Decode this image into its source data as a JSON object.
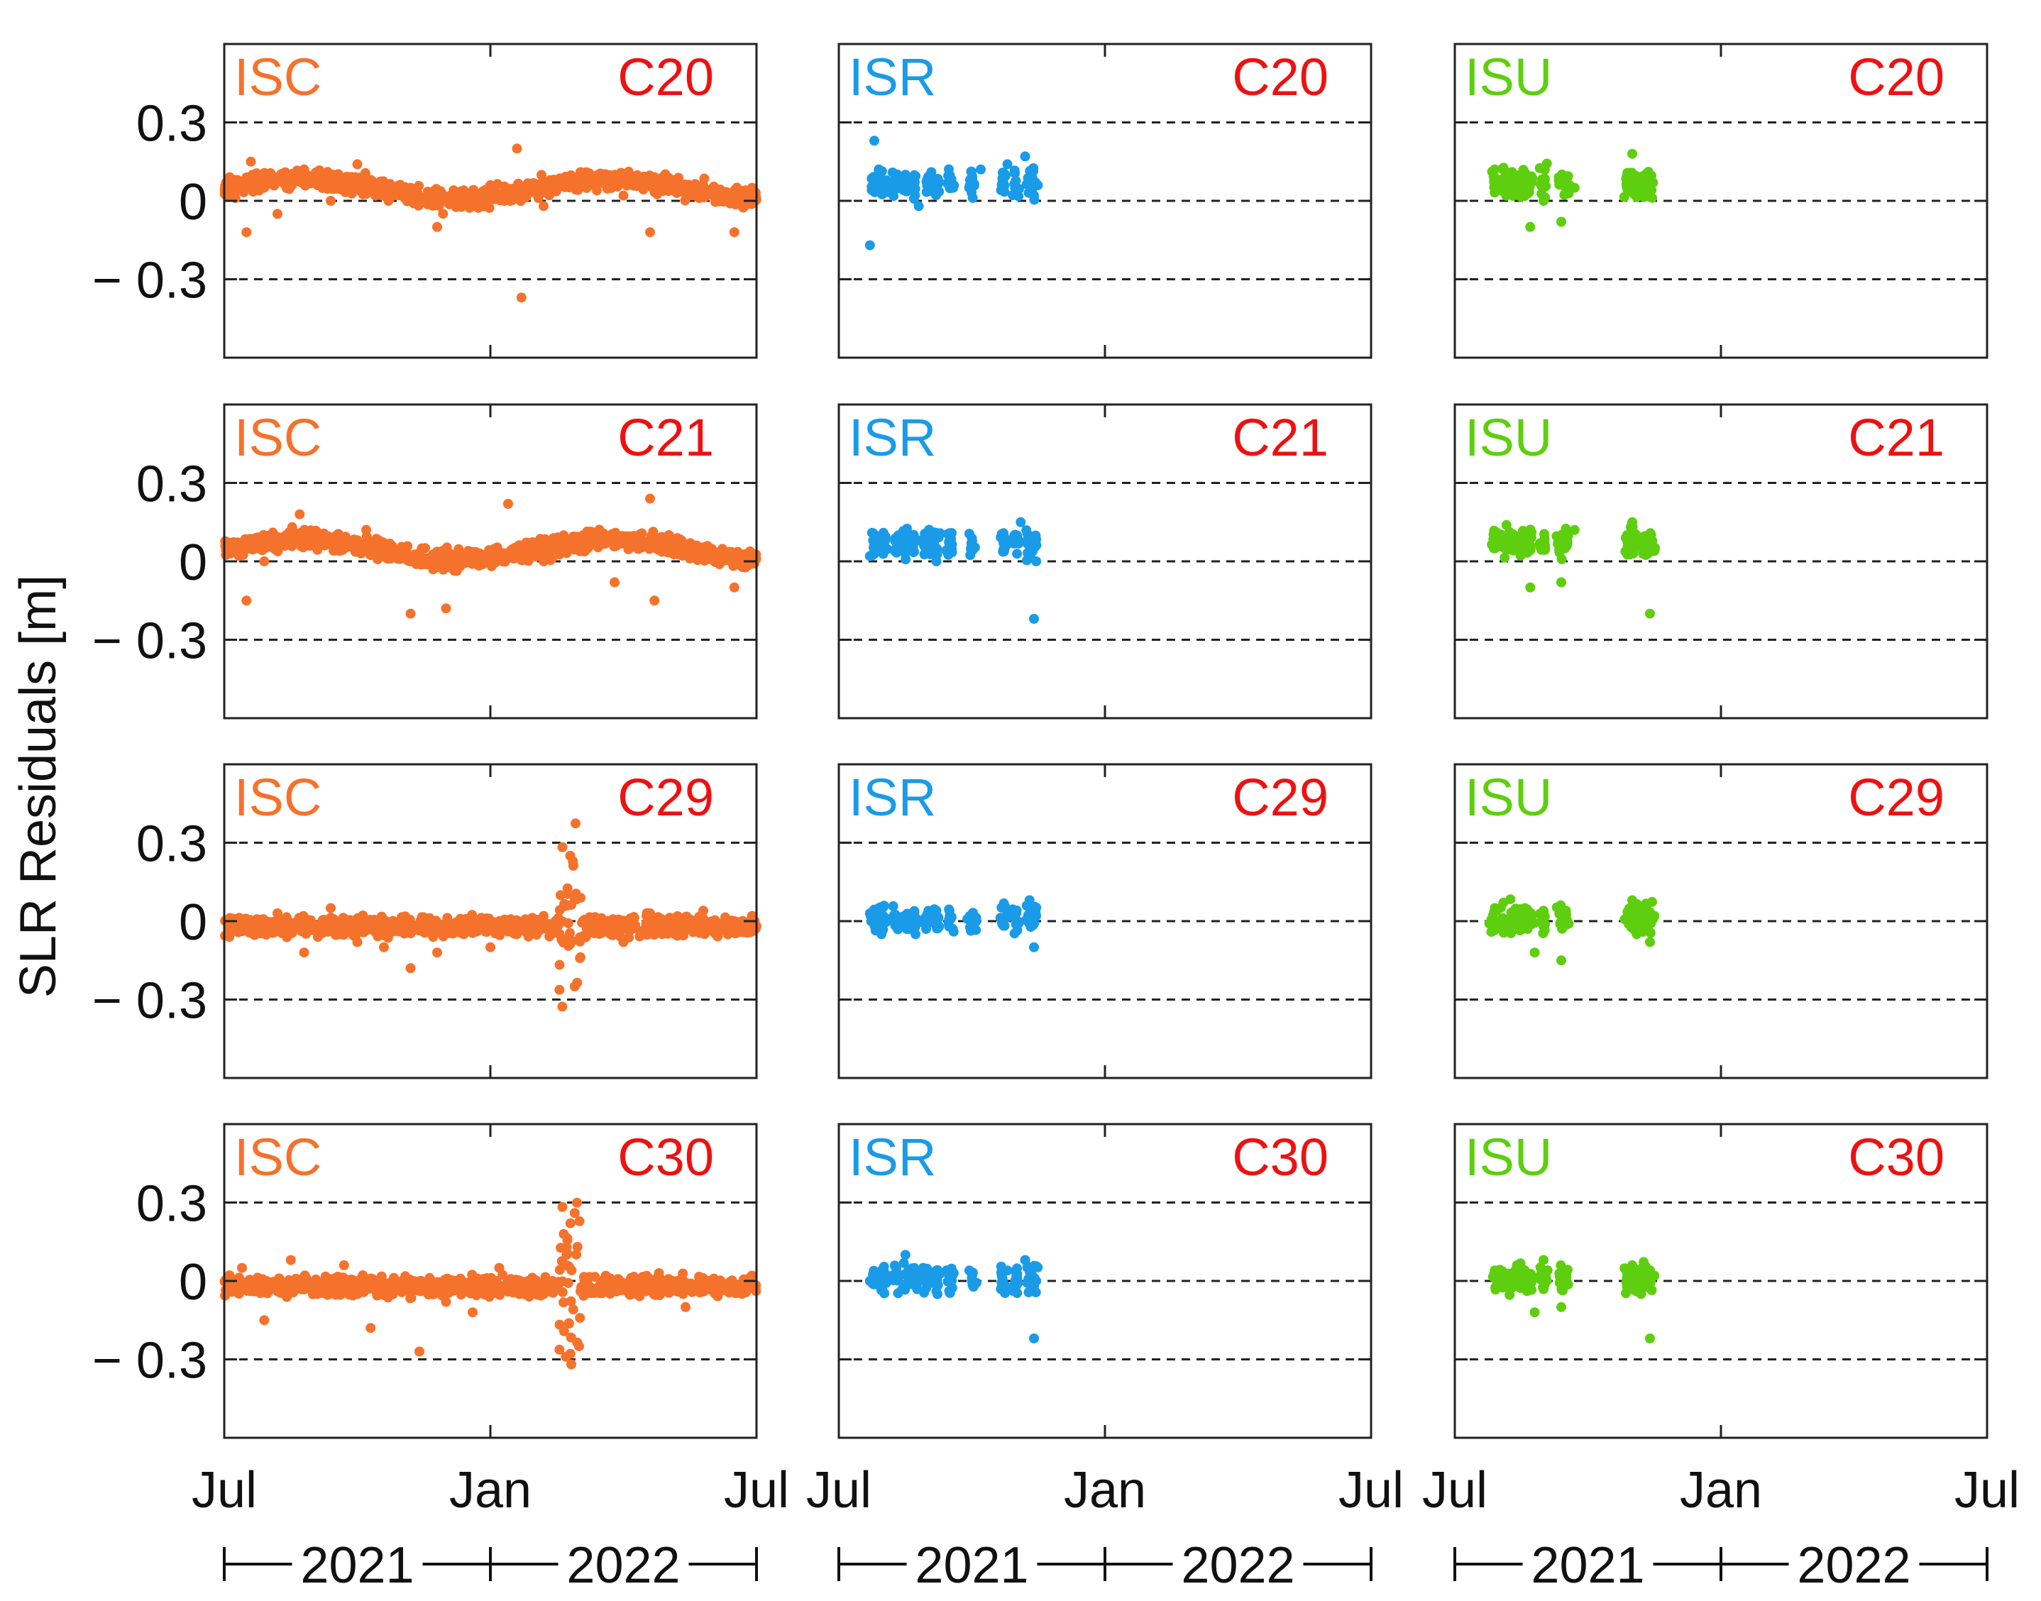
{
  "figure": {
    "ylabel": "SLR Residuals [m]",
    "x_tick_labels": [
      "Jul",
      "Jan",
      "Jul"
    ],
    "year_labels": [
      "2021",
      "2022"
    ],
    "y_tick_labels": [
      "0.3",
      "0",
      "− 0.3"
    ]
  },
  "chart_data": {
    "type": "scatter",
    "xlabel": "",
    "ylabel": "SLR Residuals [m]",
    "x_unit": "months since Jul 2021",
    "xlim": [
      0,
      12
    ],
    "ylim": [
      -0.6,
      0.6
    ],
    "yticks": [
      0.3,
      0,
      -0.3
    ],
    "reference_lines": [
      0.3,
      0,
      -0.3
    ],
    "grid": false,
    "columns": [
      {
        "name": "ISC",
        "color": "#f5722c",
        "coverage_months": [
          0,
          12
        ]
      },
      {
        "name": "ISR",
        "color": "#1a9be8",
        "coverage_months": [
          0,
          4.6
        ]
      },
      {
        "name": "ISU",
        "color": "#5ecf0f",
        "coverage_months": [
          0,
          4.6
        ]
      }
    ],
    "rows": [
      "C20",
      "C21",
      "C29",
      "C30"
    ],
    "panel_label_color": "#ee1111",
    "panels": [
      {
        "row": "C20",
        "column": "ISC",
        "points": [
          [
            0.05,
            0.02
          ],
          [
            0.25,
            0.08
          ],
          [
            0.5,
            -0.12
          ],
          [
            0.6,
            0.15
          ],
          [
            0.9,
            0.05
          ],
          [
            1.2,
            -0.05
          ],
          [
            1.5,
            0.1
          ],
          [
            1.8,
            0.12
          ],
          [
            2.1,
            0.06
          ],
          [
            2.4,
            0.0
          ],
          [
            3.0,
            0.14
          ],
          [
            3.3,
            0.08
          ],
          [
            3.6,
            0.03
          ],
          [
            4.2,
            0.05
          ],
          [
            4.8,
            -0.1
          ],
          [
            5.4,
            0.04
          ],
          [
            6.0,
            0.06
          ],
          [
            6.6,
            0.2
          ],
          [
            6.7,
            -0.37
          ],
          [
            7.2,
            -0.02
          ],
          [
            7.8,
            0.06
          ],
          [
            8.4,
            0.04
          ],
          [
            9.0,
            0.02
          ],
          [
            9.6,
            -0.12
          ],
          [
            10.2,
            0.03
          ],
          [
            10.8,
            0.06
          ],
          [
            11.5,
            -0.12
          ],
          [
            11.9,
            0.05
          ]
        ]
      },
      {
        "row": "C20",
        "column": "ISR",
        "points": [
          [
            0.7,
            -0.17
          ],
          [
            0.8,
            0.23
          ],
          [
            0.9,
            0.12
          ],
          [
            1.2,
            0.05
          ],
          [
            1.5,
            0.1
          ],
          [
            1.8,
            -0.02
          ],
          [
            2.1,
            0.08
          ],
          [
            2.5,
            0.05
          ],
          [
            3.2,
            0.12
          ],
          [
            3.8,
            0.14
          ],
          [
            4.2,
            0.17
          ],
          [
            4.4,
            0.02
          ]
        ]
      },
      {
        "row": "C20",
        "column": "ISU",
        "points": [
          [
            0.9,
            0.12
          ],
          [
            1.2,
            0.06
          ],
          [
            1.5,
            0.1
          ],
          [
            1.7,
            -0.1
          ],
          [
            2.0,
            0.0
          ],
          [
            2.4,
            -0.08
          ],
          [
            2.7,
            0.05
          ],
          [
            4.0,
            0.18
          ],
          [
            4.2,
            0.02
          ],
          [
            4.3,
            0.08
          ]
        ]
      },
      {
        "row": "C21",
        "column": "ISC",
        "points": [
          [
            0.05,
            0.05
          ],
          [
            0.5,
            -0.15
          ],
          [
            0.9,
            0.0
          ],
          [
            1.5,
            0.1
          ],
          [
            1.7,
            0.18
          ],
          [
            2.1,
            0.05
          ],
          [
            2.6,
            0.04
          ],
          [
            3.2,
            0.12
          ],
          [
            4.2,
            -0.2
          ],
          [
            5.0,
            -0.18
          ],
          [
            5.5,
            0.04
          ],
          [
            6.4,
            0.22
          ],
          [
            7.2,
            0.0
          ],
          [
            8.2,
            0.05
          ],
          [
            8.8,
            -0.08
          ],
          [
            9.6,
            0.24
          ],
          [
            9.7,
            -0.15
          ],
          [
            10.5,
            0.04
          ],
          [
            11.5,
            -0.1
          ],
          [
            11.9,
            0.02
          ]
        ]
      },
      {
        "row": "C21",
        "column": "ISR",
        "points": [
          [
            0.7,
            0.02
          ],
          [
            1.0,
            0.06
          ],
          [
            1.4,
            0.1
          ],
          [
            1.8,
            0.08
          ],
          [
            2.2,
            0.0
          ],
          [
            3.8,
            0.08
          ],
          [
            4.1,
            0.15
          ],
          [
            4.4,
            -0.22
          ],
          [
            4.45,
            0.0
          ]
        ]
      },
      {
        "row": "C21",
        "column": "ISU",
        "points": [
          [
            0.9,
            0.08
          ],
          [
            1.3,
            0.1
          ],
          [
            1.7,
            -0.1
          ],
          [
            2.0,
            0.05
          ],
          [
            2.4,
            -0.08
          ],
          [
            2.7,
            0.12
          ],
          [
            4.0,
            0.15
          ],
          [
            4.2,
            0.06
          ],
          [
            4.4,
            -0.2
          ],
          [
            4.5,
            0.04
          ]
        ]
      },
      {
        "row": "C29",
        "column": "ISC",
        "points": [
          [
            0.05,
            0.0
          ],
          [
            0.6,
            -0.01
          ],
          [
            1.2,
            0.03
          ],
          [
            1.8,
            -0.12
          ],
          [
            2.4,
            0.05
          ],
          [
            3.0,
            -0.08
          ],
          [
            3.6,
            -0.1
          ],
          [
            4.2,
            -0.18
          ],
          [
            4.8,
            -0.12
          ],
          [
            5.4,
            -0.05
          ],
          [
            6.0,
            -0.1
          ],
          [
            6.6,
            -0.05
          ],
          [
            7.2,
            0.02
          ],
          [
            7.8,
            0.25
          ],
          [
            7.9,
            -0.25
          ],
          [
            8.4,
            0.0
          ],
          [
            9.0,
            -0.08
          ],
          [
            9.6,
            0.03
          ],
          [
            10.2,
            -0.05
          ],
          [
            10.8,
            0.04
          ],
          [
            11.4,
            -0.02
          ],
          [
            11.9,
            0.02
          ]
        ]
      },
      {
        "row": "C29",
        "column": "ISR",
        "points": [
          [
            0.7,
            0.03
          ],
          [
            0.9,
            0.05
          ],
          [
            1.3,
            0.01
          ],
          [
            1.6,
            -0.03
          ],
          [
            2.2,
            0.0
          ],
          [
            3.1,
            0.0
          ],
          [
            3.8,
            0.03
          ],
          [
            4.3,
            0.08
          ],
          [
            4.4,
            -0.1
          ],
          [
            4.45,
            0.02
          ]
        ]
      },
      {
        "row": "C29",
        "column": "ISU",
        "points": [
          [
            0.9,
            0.05
          ],
          [
            1.4,
            0.0
          ],
          [
            1.8,
            -0.12
          ],
          [
            2.0,
            0.04
          ],
          [
            2.4,
            -0.15
          ],
          [
            4.0,
            0.08
          ],
          [
            4.1,
            -0.05
          ],
          [
            4.4,
            -0.08
          ],
          [
            4.5,
            0.02
          ]
        ]
      },
      {
        "row": "C30",
        "column": "ISC",
        "points": [
          [
            0.05,
            0.0
          ],
          [
            0.4,
            0.05
          ],
          [
            0.9,
            -0.15
          ],
          [
            1.5,
            0.08
          ],
          [
            2.1,
            -0.05
          ],
          [
            2.7,
            0.06
          ],
          [
            3.3,
            -0.18
          ],
          [
            3.9,
            -0.02
          ],
          [
            4.4,
            -0.27
          ],
          [
            5.0,
            -0.08
          ],
          [
            5.6,
            -0.12
          ],
          [
            6.2,
            0.05
          ],
          [
            6.8,
            -0.05
          ],
          [
            7.4,
            0.0
          ],
          [
            7.9,
            0.26
          ],
          [
            8.0,
            -0.25
          ],
          [
            8.6,
            0.02
          ],
          [
            9.2,
            -0.05
          ],
          [
            9.8,
            0.03
          ],
          [
            10.4,
            -0.1
          ],
          [
            11.0,
            0.0
          ],
          [
            11.9,
            0.02
          ]
        ]
      },
      {
        "row": "C30",
        "column": "ISR",
        "points": [
          [
            0.7,
            0.0
          ],
          [
            1.2,
            0.02
          ],
          [
            1.5,
            0.1
          ],
          [
            1.9,
            0.05
          ],
          [
            2.2,
            -0.04
          ],
          [
            3.0,
            0.0
          ],
          [
            3.8,
            0.04
          ],
          [
            4.2,
            0.08
          ],
          [
            4.4,
            -0.22
          ],
          [
            4.45,
            0.0
          ]
        ]
      },
      {
        "row": "C30",
        "column": "ISU",
        "points": [
          [
            0.9,
            0.04
          ],
          [
            1.4,
            0.06
          ],
          [
            1.8,
            -0.12
          ],
          [
            2.0,
            0.08
          ],
          [
            2.4,
            -0.1
          ],
          [
            4.0,
            0.06
          ],
          [
            4.2,
            -0.05
          ],
          [
            4.4,
            -0.22
          ],
          [
            4.5,
            0.02
          ]
        ]
      }
    ]
  }
}
